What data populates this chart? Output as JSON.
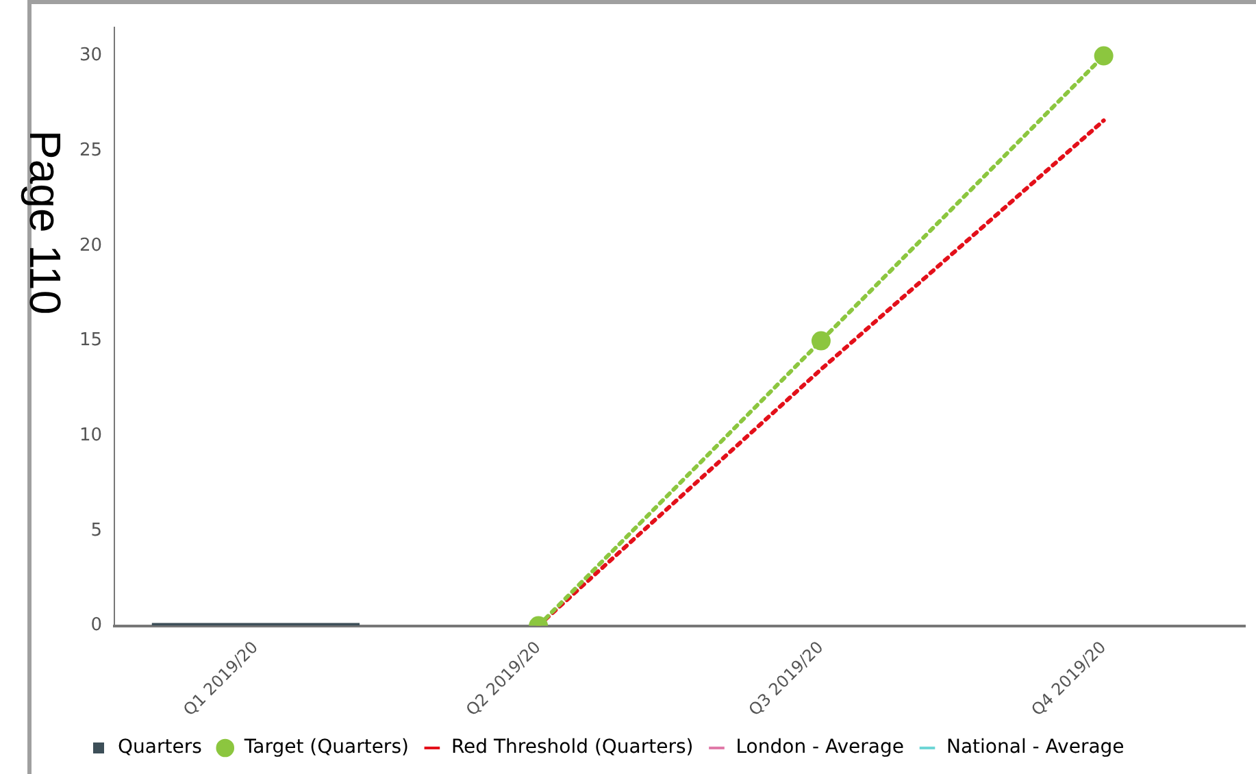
{
  "chart_data": {
    "type": "bar",
    "categories": [
      "Q1 2019/20",
      "Q2 2019/20",
      "Q3 2019/20",
      "Q4 2019/20"
    ],
    "series": [
      {
        "name": "Quarters",
        "color": "#3d4f58",
        "values": [
          0,
          null,
          null,
          null
        ]
      },
      {
        "name": "Target (Quarters)",
        "type": "line",
        "color": "#8cc63f",
        "marker": "circle",
        "line_style": "dotted",
        "values": [
          null,
          0,
          15,
          30
        ]
      },
      {
        "name": "Red Threshold (Quarters)",
        "type": "line",
        "color": "#e3101a",
        "marker": "none",
        "line_style": "dotted",
        "values": [
          null,
          0,
          13.5,
          26.6
        ]
      },
      {
        "name": "London - Average",
        "type": "line",
        "color": "#e07aa8",
        "marker": "none",
        "line_style": "solid",
        "values": [
          null,
          null,
          null,
          null
        ]
      },
      {
        "name": "National - Average",
        "type": "line",
        "color": "#6fd6d6",
        "marker": "none",
        "line_style": "solid",
        "values": [
          null,
          null,
          null,
          null
        ]
      }
    ],
    "ylim": [
      0,
      31.5
    ],
    "yticks": [
      0,
      5,
      10,
      15,
      20,
      25,
      30
    ],
    "grid": false,
    "legend": "bottom",
    "annotations": [
      "Page 110"
    ]
  }
}
